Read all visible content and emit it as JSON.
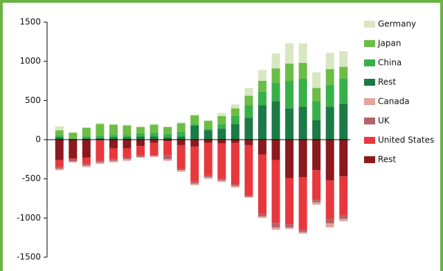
{
  "chart_data": {
    "type": "bar",
    "stacked": true,
    "categories": [
      null,
      null,
      null,
      null,
      null,
      null,
      null,
      null,
      null,
      null,
      null,
      null,
      null,
      null,
      null,
      null,
      null,
      null,
      null,
      null,
      null,
      null
    ],
    "ylim": [
      -1500,
      1500
    ],
    "yticks": [
      -1500,
      -1000,
      -500,
      0,
      500,
      1000,
      1500
    ],
    "series": [
      {
        "name": "Germany",
        "color": "#d8e7c2",
        "values": [
          50,
          0,
          10,
          10,
          10,
          10,
          10,
          10,
          10,
          10,
          10,
          10,
          40,
          50,
          100,
          140,
          190,
          260,
          250,
          200,
          210,
          200
        ]
      },
      {
        "name": "Japan",
        "color": "#6cbd45",
        "values": [
          60,
          70,
          110,
          150,
          130,
          120,
          80,
          100,
          90,
          110,
          110,
          100,
          100,
          100,
          120,
          140,
          180,
          220,
          200,
          170,
          200,
          150
        ]
      },
      {
        "name": "China",
        "color": "#38b04a",
        "values": [
          30,
          10,
          20,
          30,
          30,
          30,
          40,
          50,
          40,
          60,
          20,
          20,
          60,
          100,
          160,
          170,
          240,
          350,
          360,
          240,
          280,
          320
        ]
      },
      {
        "name": "Rest",
        "color": "#1b7a45",
        "values": [
          30,
          10,
          20,
          20,
          30,
          30,
          40,
          40,
          30,
          40,
          180,
          120,
          140,
          200,
          280,
          440,
          490,
          400,
          420,
          250,
          420,
          460
        ]
      },
      {
        "name": "Canada",
        "color": "#e3a59c",
        "values": [
          -20,
          -10,
          -20,
          -20,
          -20,
          -20,
          -10,
          -10,
          -20,
          -20,
          -20,
          -20,
          -20,
          -20,
          -10,
          -20,
          -30,
          -20,
          -20,
          -30,
          -50,
          -30
        ]
      },
      {
        "name": "UK",
        "color": "#b4636a",
        "values": [
          -20,
          -20,
          -30,
          -20,
          -20,
          -20,
          -20,
          -10,
          -50,
          -20,
          -30,
          -20,
          -20,
          -20,
          -20,
          -30,
          -60,
          -40,
          -30,
          -30,
          -60,
          -40
        ]
      },
      {
        "name": "United States",
        "color": "#e8383d",
        "values": [
          -90,
          -20,
          -70,
          -260,
          -140,
          -120,
          -120,
          -160,
          -180,
          -300,
          -440,
          -420,
          -450,
          -530,
          -640,
          -760,
          -800,
          -590,
          -670,
          -380,
          -490,
          -500
        ]
      },
      {
        "name": "Rest",
        "color": "#8b1a1f",
        "values": [
          -260,
          -240,
          -230,
          -10,
          -110,
          -110,
          -80,
          -40,
          -20,
          -70,
          -90,
          -40,
          -50,
          -40,
          -70,
          -190,
          -260,
          -490,
          -480,
          -390,
          -520,
          -470
        ]
      }
    ]
  }
}
